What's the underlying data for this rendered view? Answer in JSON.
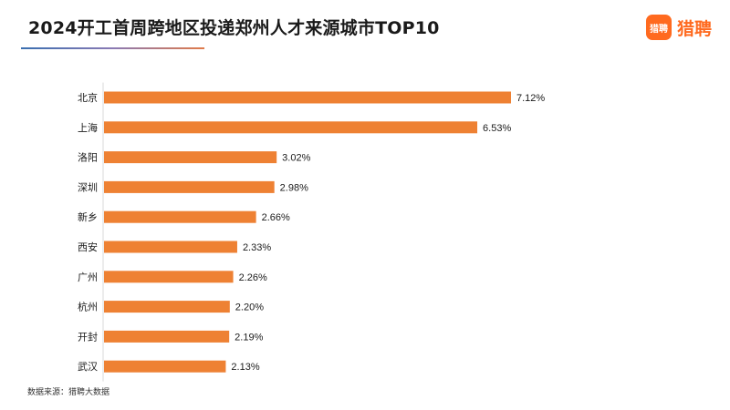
{
  "header": {
    "title": "2024开工首周跨地区投递郑州人才来源城市TOP10"
  },
  "logo": {
    "icon_text": "猎聘",
    "text": "猎聘",
    "color": "#ff6a1f"
  },
  "source": "数据来源：猎聘大数据",
  "chart_data": {
    "type": "bar",
    "orientation": "horizontal",
    "title": "2024开工首周跨地区投递郑州人才来源城市TOP10",
    "categories": [
      "北京",
      "上海",
      "洛阳",
      "深圳",
      "新乡",
      "西安",
      "广州",
      "杭州",
      "开封",
      "武汉"
    ],
    "values": [
      7.12,
      6.53,
      3.02,
      2.98,
      2.66,
      2.33,
      2.26,
      2.2,
      2.19,
      2.13
    ],
    "value_labels": [
      "7.12%",
      "6.53%",
      "3.02%",
      "2.98%",
      "2.66%",
      "2.33%",
      "2.26%",
      "2.20%",
      "2.19%",
      "2.13%"
    ],
    "unit": "%",
    "xlim": [
      0,
      7.12
    ],
    "bar_color": "#ee8133",
    "grid": false,
    "legend": "none"
  }
}
